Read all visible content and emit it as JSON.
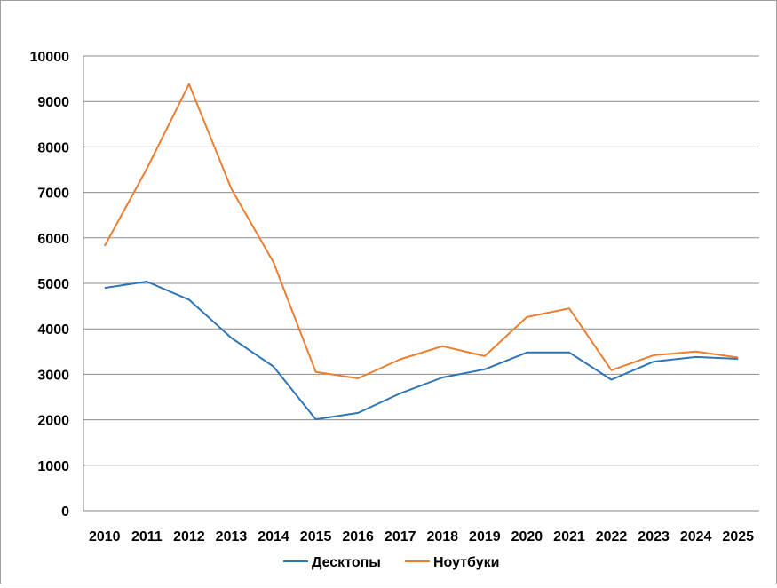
{
  "chart_data": {
    "type": "line",
    "x": [
      "2010",
      "2011",
      "2012",
      "2013",
      "2014",
      "2015",
      "2016",
      "2017",
      "2018",
      "2019",
      "2020",
      "2021",
      "2022",
      "2023",
      "2024",
      "2025"
    ],
    "series": [
      {
        "name": "Десктопы",
        "color": "#2E75B6",
        "values": [
          4900,
          5040,
          4640,
          3800,
          3170,
          2010,
          2150,
          2580,
          2930,
          3110,
          3480,
          3480,
          2880,
          3280,
          3380,
          3340
        ]
      },
      {
        "name": "Ноутбуки",
        "color": "#ED7D31",
        "values": [
          5820,
          7520,
          9380,
          7080,
          5460,
          3050,
          2910,
          3330,
          3620,
          3400,
          4260,
          4450,
          3090,
          3420,
          3500,
          3370
        ]
      }
    ],
    "y_ticks": [
      "0",
      "1000",
      "2000",
      "3000",
      "4000",
      "5000",
      "6000",
      "7000",
      "8000",
      "9000",
      "10000"
    ],
    "ylim": [
      0,
      10000
    ],
    "grid": true,
    "legend": "bottom"
  }
}
